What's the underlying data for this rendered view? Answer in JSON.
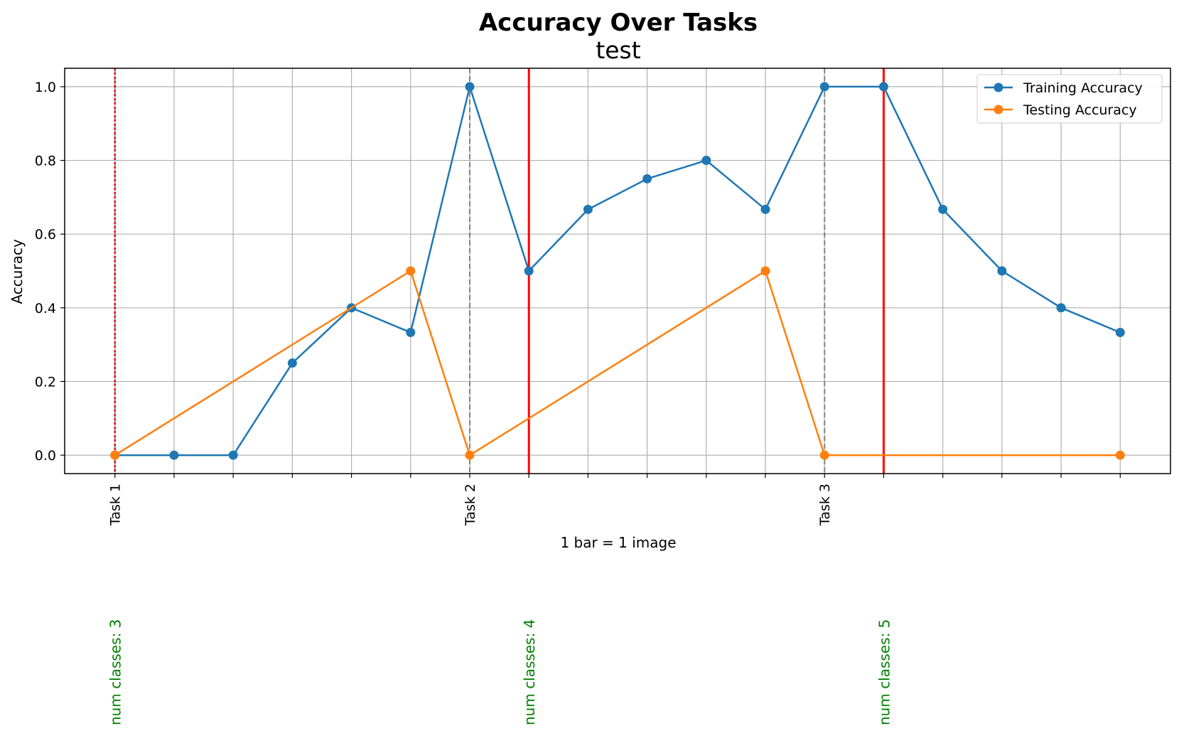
{
  "chart_data": {
    "type": "line",
    "title": "Accuracy Over Tasks",
    "subtitle": "test",
    "xlabel": "1 bar = 1 image",
    "ylabel": "Accuracy",
    "ylim": [
      -0.05,
      1.05
    ],
    "xlim": [
      -0.85,
      17.85
    ],
    "y_ticks": [
      "0.0",
      "0.2",
      "0.4",
      "0.6",
      "0.8",
      "1.0"
    ],
    "x_tick_labels": [
      {
        "x": 0,
        "label": "Task 1"
      },
      {
        "x": 6,
        "label": "Task 2"
      },
      {
        "x": 12,
        "label": "Task 3"
      }
    ],
    "grid": true,
    "legend_position": "top-right",
    "series": [
      {
        "name": "Training Accuracy",
        "color": "#1f77b4",
        "x": [
          0,
          1,
          2,
          3,
          4,
          5,
          6,
          7,
          8,
          9,
          10,
          11,
          12,
          13,
          14,
          15,
          16,
          17
        ],
        "values": [
          0.0,
          0.0,
          0.0,
          0.25,
          0.4,
          0.333,
          1.0,
          0.5,
          0.667,
          0.75,
          0.8,
          0.667,
          1.0,
          1.0,
          0.667,
          0.5,
          0.4,
          0.333
        ]
      },
      {
        "name": "Testing Accuracy",
        "color": "#ff7f0e",
        "x": [
          0,
          5,
          6,
          11,
          12,
          17
        ],
        "values": [
          0.0,
          0.5,
          0.0,
          0.5,
          0.0,
          0.0
        ]
      }
    ],
    "task_boundaries": [
      0,
      6,
      12
    ],
    "class_change_lines": [
      0,
      7,
      13
    ],
    "annotations": [
      {
        "x": 0,
        "text": "num classes: 3"
      },
      {
        "x": 7,
        "text": "num classes: 4"
      },
      {
        "x": 13,
        "text": "num classes: 5"
      }
    ],
    "colors": {
      "grid": "#b0b0b0",
      "boundary": "#808080",
      "class_line": "#ff0000",
      "annotation": "#008000"
    }
  }
}
